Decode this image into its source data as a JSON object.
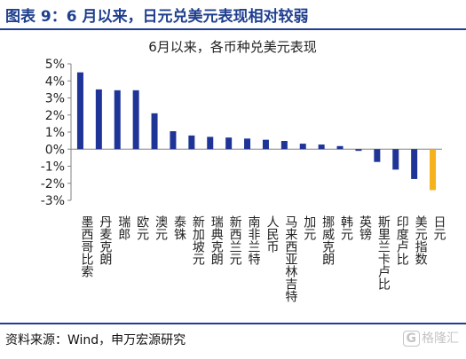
{
  "header": {
    "title": "图表 9：6 月以来，日元兑美元表现相对较弱"
  },
  "footer": {
    "source": "资料来源：Wind，申万宏源研究"
  },
  "watermark": {
    "glyph": "G",
    "text": "格隆汇"
  },
  "chart_data": {
    "type": "bar",
    "title": "6月以来，各币种兑美元表现",
    "xlabel": "",
    "ylabel": "",
    "ylim": [
      -3,
      5
    ],
    "yticks": [
      "5%",
      "4%",
      "3%",
      "2%",
      "1%",
      "0%",
      "-1%",
      "-2%",
      "-3%"
    ],
    "ytick_values": [
      5,
      4,
      3,
      2,
      1,
      0,
      -1,
      -2,
      -3
    ],
    "grid": false,
    "legend": "none",
    "colors": {
      "default": "#1f3497",
      "highlight": "#f5b21a",
      "axis": "#808080",
      "text": "#222222"
    },
    "highlight_category": "日元",
    "categories": [
      "墨西哥比索",
      "丹麦克朗",
      "瑞郎",
      "欧元",
      "澳元",
      "泰铢",
      "新加坡元",
      "瑞典克朗",
      "新西兰元",
      "南非兰特",
      "人民币",
      "马来西亚林吉特",
      "加元",
      "挪威克朗",
      "韩元",
      "英镑",
      "斯里兰卡卢比",
      "印度卢比",
      "美元指数",
      "日元"
    ],
    "values": [
      4.5,
      3.5,
      3.45,
      3.45,
      2.1,
      1.05,
      0.8,
      0.72,
      0.68,
      0.62,
      0.55,
      0.48,
      0.32,
      0.27,
      0.18,
      -0.1,
      -0.75,
      -1.2,
      -1.75,
      -2.4
    ]
  }
}
